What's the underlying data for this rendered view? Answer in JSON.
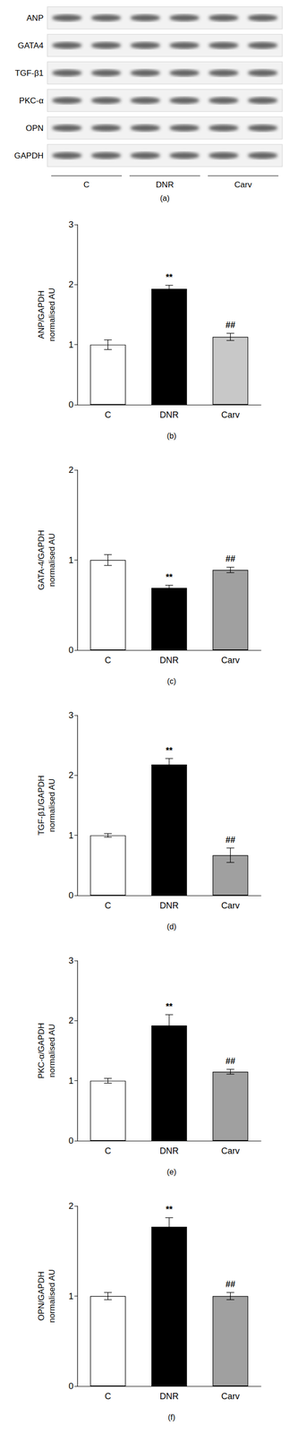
{
  "blot": {
    "panel": "(a)",
    "rows": [
      "ANP",
      "GATA4",
      "TGF-β1",
      "PKC-α",
      "OPN",
      "GAPDH"
    ],
    "groups": [
      "C",
      "DNR",
      "Carv"
    ]
  },
  "chart_data": [
    {
      "type": "bar",
      "caption": "(b)",
      "ylabel": "ANP/GAPDH\nnormalised AU",
      "categories": [
        "C",
        "DNR",
        "Carv"
      ],
      "values": [
        1.0,
        1.93,
        1.13
      ],
      "errors": [
        0.08,
        0.06,
        0.06
      ],
      "colors": [
        "#ffffff",
        "#000000",
        "#c8c8c8"
      ],
      "ylim": [
        0,
        3
      ],
      "yticks": [
        0,
        1,
        2,
        3
      ],
      "grid": false,
      "annotations": [
        {
          "category": "DNR",
          "text": "**"
        },
        {
          "category": "Carv",
          "text": "##"
        }
      ]
    },
    {
      "type": "bar",
      "caption": "(c)",
      "ylabel": "GATA-4/GAPDH\nnormalised AU",
      "categories": [
        "C",
        "DNR",
        "Carv"
      ],
      "values": [
        1.0,
        0.69,
        0.89
      ],
      "errors": [
        0.06,
        0.03,
        0.03
      ],
      "colors": [
        "#ffffff",
        "#000000",
        "#a0a0a0"
      ],
      "ylim": [
        0,
        2
      ],
      "yticks": [
        0,
        1,
        2
      ],
      "grid": false,
      "annotations": [
        {
          "category": "DNR",
          "text": "**"
        },
        {
          "category": "Carv",
          "text": "##"
        }
      ]
    },
    {
      "type": "bar",
      "caption": "(d)",
      "ylabel": "TGF-β1/GAPDH\nnormalised AU",
      "categories": [
        "C",
        "DNR",
        "Carv"
      ],
      "values": [
        1.0,
        2.18,
        0.67
      ],
      "errors": [
        0.03,
        0.1,
        0.12
      ],
      "colors": [
        "#ffffff",
        "#000000",
        "#a0a0a0"
      ],
      "ylim": [
        0,
        3
      ],
      "yticks": [
        0,
        1,
        2,
        3
      ],
      "grid": false,
      "annotations": [
        {
          "category": "DNR",
          "text": "**"
        },
        {
          "category": "Carv",
          "text": "##"
        }
      ]
    },
    {
      "type": "bar",
      "caption": "(e)",
      "ylabel": "PKC-α/GAPDH\nnormalised AU",
      "categories": [
        "C",
        "DNR",
        "Carv"
      ],
      "values": [
        1.0,
        1.92,
        1.15
      ],
      "errors": [
        0.04,
        0.18,
        0.04
      ],
      "colors": [
        "#ffffff",
        "#000000",
        "#a0a0a0"
      ],
      "ylim": [
        0,
        3
      ],
      "yticks": [
        0,
        1,
        2,
        3
      ],
      "grid": false,
      "annotations": [
        {
          "category": "DNR",
          "text": "**"
        },
        {
          "category": "Carv",
          "text": "##"
        }
      ]
    },
    {
      "type": "bar",
      "caption": "(f)",
      "ylabel": "OPN/GAPDH\nnormalised AU",
      "categories": [
        "C",
        "DNR",
        "Carv"
      ],
      "values": [
        1.0,
        1.77,
        1.0
      ],
      "errors": [
        0.04,
        0.1,
        0.04
      ],
      "colors": [
        "#ffffff",
        "#000000",
        "#a0a0a0"
      ],
      "ylim": [
        0,
        2
      ],
      "yticks": [
        0,
        1,
        2
      ],
      "grid": false,
      "annotations": [
        {
          "category": "DNR",
          "text": "**"
        },
        {
          "category": "Carv",
          "text": "##"
        }
      ]
    }
  ]
}
